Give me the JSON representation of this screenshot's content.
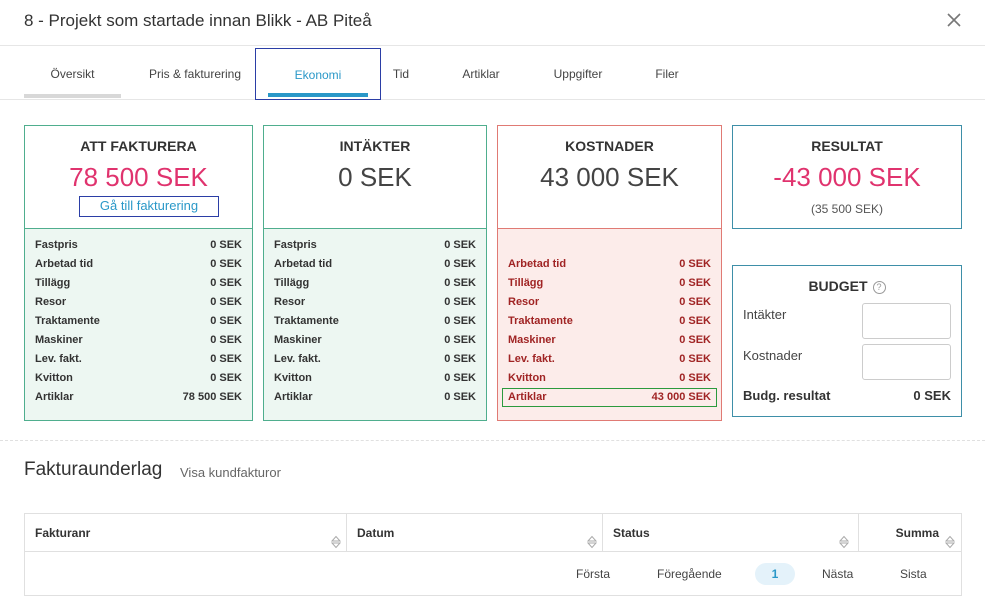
{
  "header": {
    "title": "8 - Projekt som startade innan Blikk - AB Piteå"
  },
  "tabs": [
    {
      "label": "Översikt"
    },
    {
      "label": "Pris & fakturering"
    },
    {
      "label": "Ekonomi",
      "active": true
    },
    {
      "label": "Tid"
    },
    {
      "label": "Artiklar"
    },
    {
      "label": "Uppgifter"
    },
    {
      "label": "Filer"
    }
  ],
  "cards": {
    "att_fakturera": {
      "title": "ATT FAKTURERA",
      "amount": "78 500 SEK",
      "link": "Gå till fakturering",
      "rows": [
        {
          "label": "Fastpris",
          "value": "0 SEK"
        },
        {
          "label": "Arbetad tid",
          "value": "0 SEK"
        },
        {
          "label": "Tillägg",
          "value": "0 SEK"
        },
        {
          "label": "Resor",
          "value": "0 SEK"
        },
        {
          "label": "Traktamente",
          "value": "0 SEK"
        },
        {
          "label": "Maskiner",
          "value": "0 SEK"
        },
        {
          "label": "Lev. fakt.",
          "value": "0 SEK"
        },
        {
          "label": "Kvitton",
          "value": "0 SEK"
        },
        {
          "label": "Artiklar",
          "value": "78 500 SEK"
        }
      ]
    },
    "intakter": {
      "title": "INTÄKTER",
      "amount": "0 SEK",
      "rows": [
        {
          "label": "Fastpris",
          "value": "0 SEK"
        },
        {
          "label": "Arbetad tid",
          "value": "0 SEK"
        },
        {
          "label": "Tillägg",
          "value": "0 SEK"
        },
        {
          "label": "Resor",
          "value": "0 SEK"
        },
        {
          "label": "Traktamente",
          "value": "0 SEK"
        },
        {
          "label": "Maskiner",
          "value": "0 SEK"
        },
        {
          "label": "Lev. fakt.",
          "value": "0 SEK"
        },
        {
          "label": "Kvitton",
          "value": "0 SEK"
        },
        {
          "label": "Artiklar",
          "value": "0 SEK"
        }
      ]
    },
    "kostnader": {
      "title": "KOSTNADER",
      "amount": "43 000 SEK",
      "rows": [
        {
          "label": "Arbetad tid",
          "value": "0 SEK"
        },
        {
          "label": "Tillägg",
          "value": "0 SEK"
        },
        {
          "label": "Resor",
          "value": "0 SEK"
        },
        {
          "label": "Traktamente",
          "value": "0 SEK"
        },
        {
          "label": "Maskiner",
          "value": "0 SEK"
        },
        {
          "label": "Lev. fakt.",
          "value": "0 SEK"
        },
        {
          "label": "Kvitton",
          "value": "0 SEK"
        },
        {
          "label": "Artiklar",
          "value": "43 000 SEK"
        }
      ]
    },
    "resultat": {
      "title": "RESULTAT",
      "amount": "-43 000 SEK",
      "sub": "(35 500 SEK)"
    },
    "budget": {
      "title": "BUDGET",
      "help": "?",
      "intakter_label": "Intäkter",
      "intakter_value": "",
      "kostnader_label": "Kostnader",
      "kostnader_value": "",
      "result_label": "Budg. resultat",
      "result_value": "0 SEK"
    }
  },
  "fakturaunderlag": {
    "title": "Fakturaunderlag",
    "link": "Visa kundfakturor",
    "columns": [
      "Fakturanr",
      "Datum",
      "Status",
      "Summa"
    ],
    "pager": {
      "first": "Första",
      "prev": "Föregående",
      "current": "1",
      "next": "Nästa",
      "last": "Sista"
    }
  },
  "colors": {
    "accent": "#2a98c8",
    "pink": "#e0336e",
    "green_border": "#4fae8e",
    "red_border": "#e07a74",
    "focus": "#2b3ea6"
  }
}
